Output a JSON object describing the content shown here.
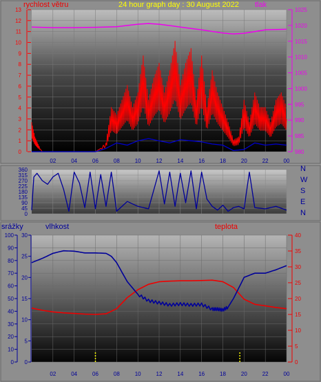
{
  "header": {
    "wind_label": "rychlost větru",
    "title": "24 hour graph day : 30 August 2022",
    "pressure_label": "tlak"
  },
  "bottom_header": {
    "rain_label": "srážky",
    "humidity_label": "vlhkost",
    "temperature_label": "teplota"
  },
  "colors": {
    "wind_speed": "#ff0000",
    "wind_gust_bars": "#ff0000",
    "wind_avg": "#0000cc",
    "pressure": "#ee00ee",
    "direction": "#000099",
    "humidity": "#000099",
    "temperature": "#ee0000",
    "rain": "#ffff00",
    "title": "#ffff00",
    "frame": "#777777"
  },
  "chart_data": [
    {
      "id": "wind_pressure",
      "type": "line",
      "title": "24 hour graph day : 30 August 2022",
      "x_ticks": [
        "02",
        "04",
        "06",
        "08",
        "10",
        "12",
        "14",
        "16",
        "18",
        "20",
        "22",
        "00"
      ],
      "x_range_hours": [
        0,
        24
      ],
      "y_left_label": "rychlost větru",
      "y_left_ticks": [
        "0",
        "1",
        "2",
        "3",
        "4",
        "5",
        "6",
        "7",
        "8",
        "9",
        "10",
        "11",
        "12",
        "13"
      ],
      "y_left_range": [
        0,
        13
      ],
      "y_right_label": "tlak",
      "y_right_ticks": [
        "980",
        "985",
        "990",
        "995",
        "1000",
        "1005",
        "1010",
        "1015",
        "1020",
        "1025"
      ],
      "y_right_range": [
        980,
        1025
      ],
      "series": [
        {
          "axis": "right",
          "x": [
            0,
            2,
            4,
            6,
            8,
            10,
            11,
            12,
            14,
            16,
            18,
            19,
            20,
            22,
            24
          ],
          "y": [
            1019.5,
            1019.3,
            1019.3,
            1019.4,
            1019.6,
            1020.4,
            1020.6,
            1020.4,
            1019.5,
            1018.6,
            1017.6,
            1017.3,
            1017.5,
            1018.6,
            1018.8
          ]
        },
        {
          "axis": "left",
          "x": [
            0,
            0.3,
            0.6,
            1,
            2,
            3,
            4,
            5,
            6,
            7,
            7.5,
            8,
            8.5,
            9,
            9.5,
            10,
            10.5,
            11,
            11.5,
            12,
            12.5,
            13,
            13.5,
            14,
            14.5,
            15,
            15.5,
            16,
            16.5,
            17,
            17.5,
            18,
            18.5,
            19,
            19.5,
            20,
            20.5,
            21,
            21.5,
            22,
            22.5,
            23,
            23.5,
            24
          ],
          "y": [
            2,
            1,
            0.5,
            0,
            0,
            0,
            0,
            0,
            0,
            0.6,
            3,
            2.5,
            3.5,
            4.5,
            3,
            4,
            6.5,
            3.5,
            5,
            6,
            4,
            5.5,
            7.5,
            4.5,
            6,
            7,
            3.5,
            6.5,
            3,
            5.5,
            4,
            3,
            2,
            0.8,
            1,
            3.5,
            2,
            4,
            3,
            3,
            2,
            3.5,
            4,
            3
          ]
        },
        {
          "axis": "left",
          "x": [
            0,
            1,
            2,
            3,
            4,
            5,
            6,
            7,
            8,
            9,
            10,
            11,
            12,
            13,
            14,
            15,
            16,
            17,
            18,
            19,
            20,
            21,
            22,
            23,
            24
          ],
          "y": [
            0,
            0,
            0,
            0,
            0,
            0,
            0,
            0.3,
            0.8,
            0.6,
            1,
            1.2,
            1,
            0.8,
            1.1,
            1,
            0.9,
            0.7,
            0.6,
            0.1,
            0.2,
            0.8,
            0.6,
            0.7,
            0.6
          ]
        }
      ]
    },
    {
      "id": "wind_direction",
      "type": "line",
      "x_range_hours": [
        0,
        24
      ],
      "y_ticks": [
        "0",
        "45",
        "90",
        "135",
        "180",
        "225",
        "270",
        "315",
        "360"
      ],
      "y_range": [
        0,
        360
      ],
      "direction_labels": [
        "N",
        "W",
        "S",
        "E",
        "N"
      ],
      "series": [
        {
          "x": [
            0,
            0.2,
            0.5,
            1,
            1.5,
            2,
            2.5,
            3,
            3.5,
            4,
            4.5,
            5,
            5.5,
            6,
            6.5,
            7,
            7.5,
            8,
            9,
            10,
            11,
            12,
            12.5,
            13,
            13.5,
            14,
            14.5,
            15,
            15.5,
            16,
            16.5,
            17,
            17.5,
            18,
            18.5,
            19,
            19.5,
            20,
            20.5,
            21,
            22,
            23,
            24
          ],
          "y": [
            30,
            300,
            330,
            270,
            240,
            300,
            330,
            200,
            20,
            340,
            250,
            50,
            340,
            40,
            320,
            60,
            340,
            20,
            100,
            60,
            40,
            350,
            80,
            340,
            60,
            330,
            90,
            350,
            40,
            340,
            120,
            60,
            30,
            70,
            20,
            50,
            60,
            40,
            340,
            50,
            40,
            60,
            30
          ]
        }
      ]
    },
    {
      "id": "humidity_temperature_rain",
      "type": "line",
      "x_ticks": [
        "02",
        "04",
        "06",
        "08",
        "10",
        "12",
        "14",
        "16",
        "18",
        "20",
        "22",
        "00"
      ],
      "x_range_hours": [
        0,
        24
      ],
      "y_rain_label": "srážky",
      "y_rain_ticks": [
        "0",
        "10",
        "20",
        "30",
        "40",
        "50",
        "60",
        "70",
        "80",
        "90",
        "100"
      ],
      "y_rain_range": [
        0,
        100
      ],
      "y_humidity_label": "vlhkost",
      "y_humidity_ticks": [
        "0",
        "5",
        "10",
        "15",
        "20",
        "25",
        "30"
      ],
      "y_humidity_range": [
        0,
        30
      ],
      "y_temp_label": "teplota",
      "y_temp_ticks": [
        "0",
        "5",
        "10",
        "15",
        "20",
        "25",
        "30",
        "35",
        "40"
      ],
      "y_temp_range": [
        0,
        40
      ],
      "series": [
        {
          "axis": "humidity",
          "x": [
            0,
            1,
            2,
            3,
            4,
            5,
            6,
            7,
            7.5,
            8,
            9,
            10,
            11,
            12,
            13,
            14,
            15,
            16,
            17,
            17.5,
            18,
            18.5,
            19,
            20,
            21,
            22,
            23,
            24
          ],
          "y": [
            23.5,
            24.5,
            25.7,
            26.3,
            26.2,
            25.8,
            25.8,
            25.7,
            25,
            23.5,
            19,
            16,
            14.5,
            14,
            13.5,
            13.7,
            13.5,
            13.6,
            12.5,
            12.5,
            12.3,
            13,
            15,
            20,
            21,
            21,
            21.8,
            22.8
          ]
        },
        {
          "axis": "temp",
          "x": [
            0,
            1,
            2,
            3,
            4,
            5,
            6,
            7,
            8,
            9,
            10,
            11,
            12,
            13,
            14,
            15,
            16,
            17,
            18,
            19,
            20,
            21,
            22,
            23,
            24
          ],
          "y": [
            17,
            16.3,
            15.8,
            15.5,
            15.3,
            15.1,
            15,
            15.2,
            16.8,
            20.3,
            22.8,
            24.5,
            25.3,
            25.5,
            25.6,
            25.6,
            25.7,
            25.8,
            25.3,
            23.5,
            19.8,
            18.2,
            17.7,
            17.2,
            16.8
          ]
        },
        {
          "axis": "rain",
          "x": [
            0,
            6,
            6.01,
            19.6,
            19.61,
            24
          ],
          "y": [
            0,
            0,
            0,
            0,
            0,
            0
          ]
        }
      ]
    }
  ]
}
